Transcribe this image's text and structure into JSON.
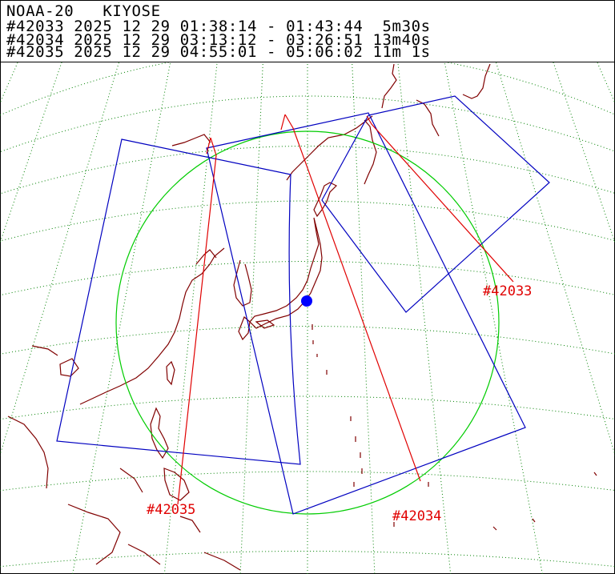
{
  "header": {
    "satellite_station": "NOAA-20   KIYOSE",
    "passes": [
      {
        "id": "#42033",
        "line": "#42033 2025 12 29 01:38:14 - 01:43:44  5m30s"
      },
      {
        "id": "#42034",
        "line": "#42034 2025 12 29 03:13:12 - 03:26:51 13m40s"
      },
      {
        "id": "#42035",
        "line": "#42035 2025 12 29 04:55:01 - 05:06:02 11m 1s"
      }
    ]
  },
  "map": {
    "labels": {
      "p42033": "#42033",
      "p42034": "#42034",
      "p42035": "#42035"
    },
    "station_name": "KIYOSE",
    "colors": {
      "coastline": "#800000",
      "graticule": "#008000",
      "track": "#e00000",
      "swath": "#0000c0",
      "coverage_circle": "#00cc00",
      "station_marker": "#0000ff"
    }
  }
}
